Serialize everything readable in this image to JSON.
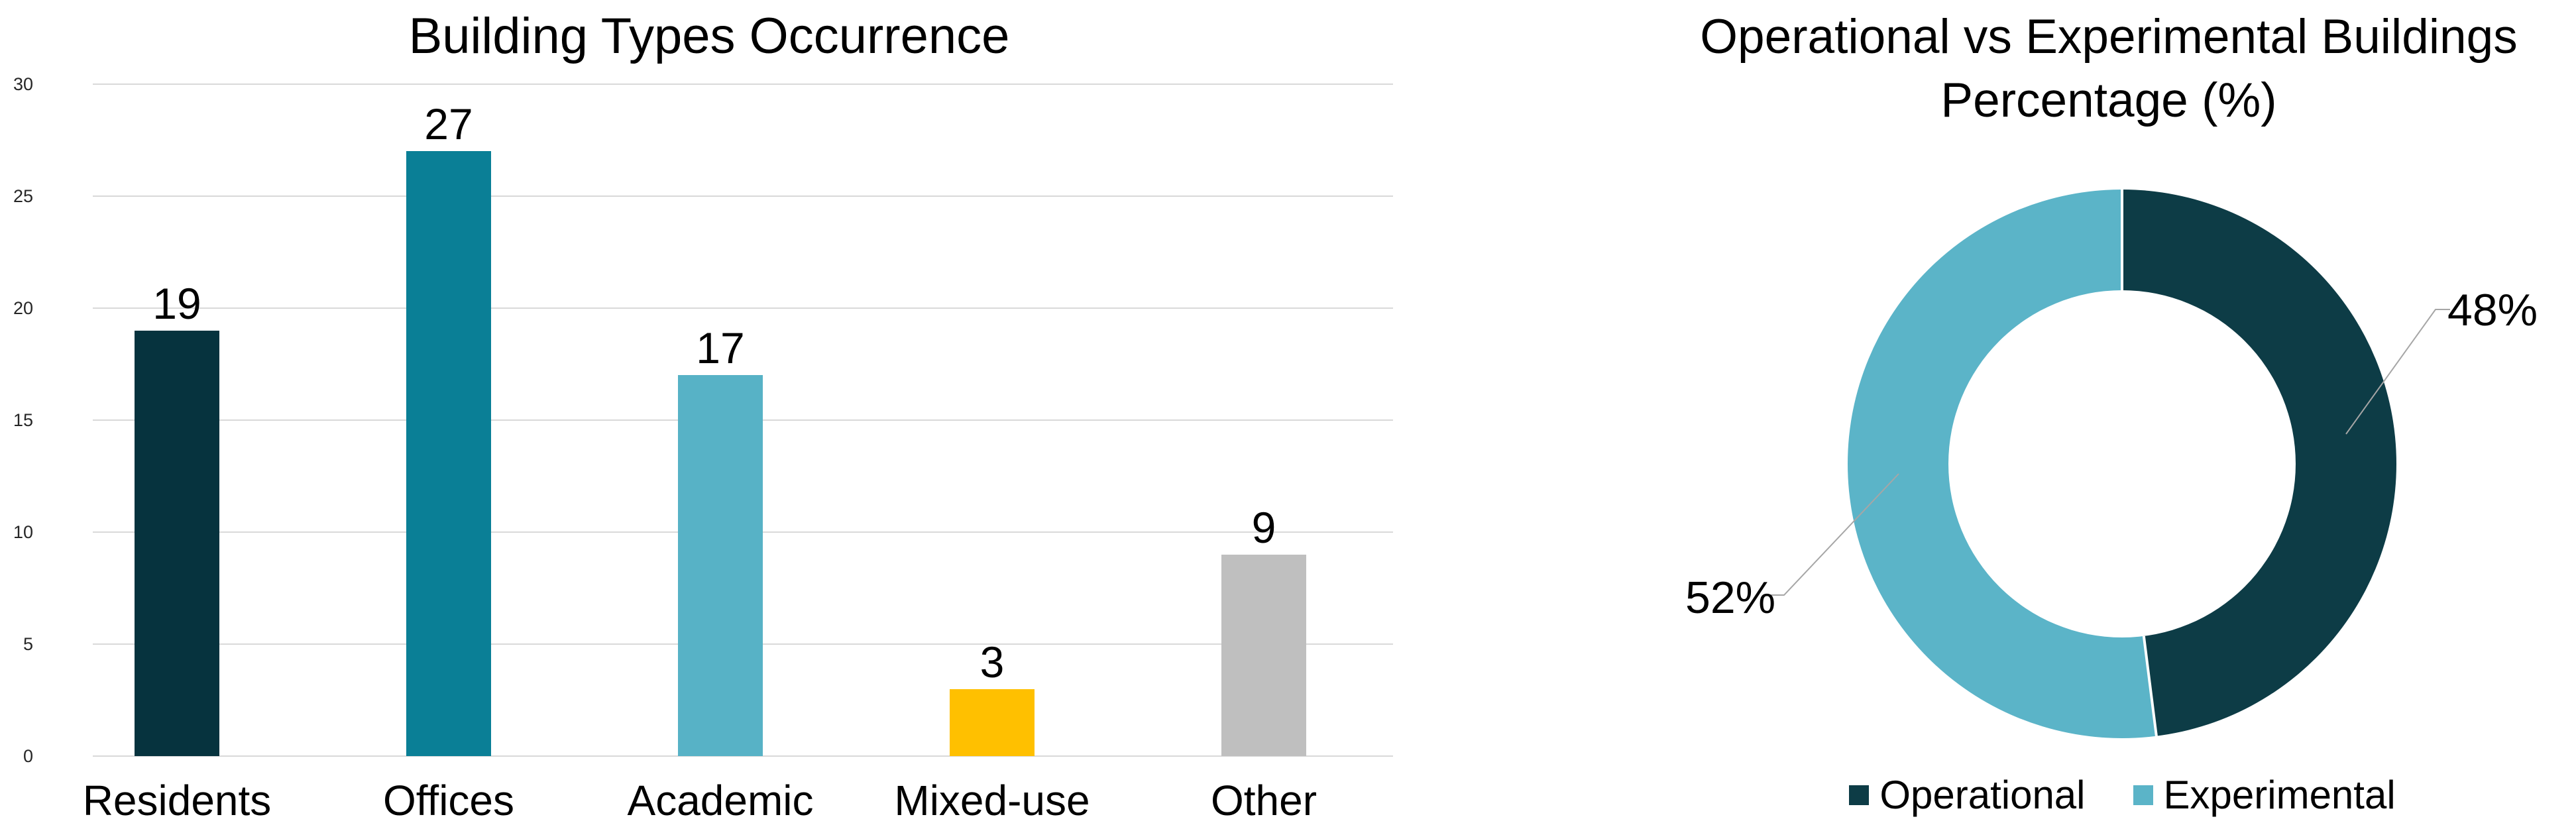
{
  "page": {
    "background": "#FFFFFF"
  },
  "chart_data": [
    {
      "type": "bar",
      "title": "Building Types Occurrence",
      "categories": [
        "Residents",
        "Offices",
        "Academic",
        "Mixed-use",
        "Other"
      ],
      "values": [
        19,
        27,
        17,
        3,
        9
      ],
      "data_labels": [
        "19",
        "27",
        "17",
        "3",
        "9"
      ],
      "bar_colors": [
        "#06333E",
        "#0A7F96",
        "#57B2C6",
        "#FFC000",
        "#BFBFBF"
      ],
      "xlabel": "",
      "ylabel": "",
      "ylim": [
        0,
        30
      ],
      "yticks": [
        0,
        5,
        10,
        15,
        20,
        25,
        30
      ],
      "grid": true,
      "gridline_color": "#D9D9D9",
      "legend_position": "none"
    },
    {
      "type": "pie",
      "subtype": "donut",
      "title": "Operational vs Experimental Buildings Percentage (%)",
      "title_lines": [
        "Operational vs Experimental Buildings",
        "Percentage (%)"
      ],
      "slices": [
        {
          "label": "Operational",
          "value": 48,
          "pct_label": "48%",
          "color": "#0D3C46"
        },
        {
          "label": "Experimental",
          "value": 52,
          "pct_label": "52%",
          "color": "#5BB4C8"
        }
      ],
      "start_angle_deg": 0,
      "direction": "clockwise",
      "hole_ratio": 0.63,
      "separator_color": "#FFFFFF",
      "leader_line_color": "#A6A6A6",
      "legend_position": "bottom"
    }
  ]
}
